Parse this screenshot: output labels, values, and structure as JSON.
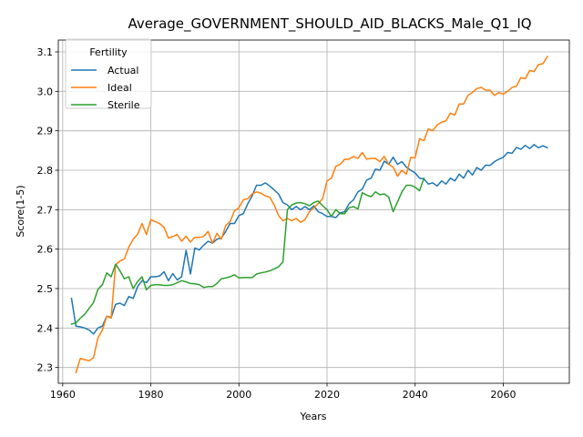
{
  "chart_data": {
    "type": "line",
    "title": "Average_GOVERNMENT_SHOULD_AID_BLACKS_Male_Q1_IQ",
    "xlabel": "Years",
    "ylabel": "Score(1-5)",
    "xlim": [
      1959,
      2075
    ],
    "ylim": [
      2.26,
      3.13
    ],
    "xticks": [
      1960,
      1980,
      2000,
      2020,
      2040,
      2060
    ],
    "yticks": [
      2.3,
      2.4,
      2.5,
      2.6,
      2.7,
      2.8,
      2.9,
      3.0,
      3.1
    ],
    "grid": true,
    "legend": {
      "title": "Fertility",
      "position": "top-left"
    },
    "series": [
      {
        "name": "Actual",
        "color": "#1f77b4",
        "points": [
          [
            1962,
            2.475
          ],
          [
            1963,
            2.405
          ],
          [
            1964,
            2.403
          ],
          [
            1965,
            2.4
          ],
          [
            1966,
            2.395
          ],
          [
            1967,
            2.385
          ],
          [
            1968,
            2.4
          ],
          [
            1969,
            2.405
          ],
          [
            1970,
            2.43
          ],
          [
            1971,
            2.427
          ],
          [
            1972,
            2.46
          ],
          [
            1973,
            2.463
          ],
          [
            1974,
            2.457
          ],
          [
            1975,
            2.48
          ],
          [
            1976,
            2.475
          ],
          [
            1977,
            2.505
          ],
          [
            1978,
            2.52
          ],
          [
            1979,
            2.515
          ],
          [
            1980,
            2.53
          ],
          [
            1981,
            2.53
          ],
          [
            1982,
            2.532
          ],
          [
            1983,
            2.543
          ],
          [
            1984,
            2.52
          ],
          [
            1985,
            2.538
          ],
          [
            1986,
            2.522
          ],
          [
            1987,
            2.53
          ],
          [
            1988,
            2.597
          ],
          [
            1989,
            2.537
          ],
          [
            1990,
            2.603
          ],
          [
            1991,
            2.598
          ],
          [
            1992,
            2.61
          ],
          [
            1993,
            2.62
          ],
          [
            1994,
            2.615
          ],
          [
            1995,
            2.625
          ],
          [
            1996,
            2.628
          ],
          [
            1997,
            2.645
          ],
          [
            1998,
            2.665
          ],
          [
            1999,
            2.665
          ],
          [
            2000,
            2.685
          ],
          [
            2001,
            2.69
          ],
          [
            2002,
            2.715
          ],
          [
            2003,
            2.735
          ],
          [
            2004,
            2.762
          ],
          [
            2005,
            2.762
          ],
          [
            2006,
            2.768
          ],
          [
            2007,
            2.76
          ],
          [
            2008,
            2.75
          ],
          [
            2009,
            2.74
          ],
          [
            2010,
            2.718
          ],
          [
            2011,
            2.712
          ],
          [
            2012,
            2.7
          ],
          [
            2013,
            2.708
          ],
          [
            2014,
            2.7
          ],
          [
            2015,
            2.708
          ],
          [
            2016,
            2.7
          ],
          [
            2017,
            2.71
          ],
          [
            2018,
            2.695
          ],
          [
            2019,
            2.69
          ],
          [
            2020,
            2.683
          ],
          [
            2021,
            2.683
          ],
          [
            2022,
            2.68
          ],
          [
            2023,
            2.692
          ],
          [
            2024,
            2.695
          ],
          [
            2025,
            2.715
          ],
          [
            2026,
            2.725
          ],
          [
            2027,
            2.745
          ],
          [
            2028,
            2.752
          ],
          [
            2029,
            2.775
          ],
          [
            2030,
            2.78
          ],
          [
            2031,
            2.803
          ],
          [
            2032,
            2.8
          ],
          [
            2033,
            2.823
          ],
          [
            2034,
            2.815
          ],
          [
            2035,
            2.833
          ],
          [
            2036,
            2.815
          ],
          [
            2037,
            2.822
          ],
          [
            2038,
            2.808
          ],
          [
            2039,
            2.8
          ],
          [
            2040,
            2.793
          ],
          [
            2041,
            2.78
          ],
          [
            2042,
            2.778
          ],
          [
            2043,
            2.765
          ],
          [
            2044,
            2.768
          ],
          [
            2045,
            2.76
          ],
          [
            2046,
            2.773
          ],
          [
            2047,
            2.765
          ],
          [
            2048,
            2.78
          ],
          [
            2049,
            2.773
          ],
          [
            2050,
            2.79
          ],
          [
            2051,
            2.78
          ],
          [
            2052,
            2.8
          ],
          [
            2053,
            2.788
          ],
          [
            2054,
            2.807
          ],
          [
            2055,
            2.8
          ],
          [
            2056,
            2.813
          ],
          [
            2057,
            2.812
          ],
          [
            2058,
            2.822
          ],
          [
            2059,
            2.828
          ],
          [
            2060,
            2.833
          ],
          [
            2061,
            2.845
          ],
          [
            2062,
            2.843
          ],
          [
            2063,
            2.858
          ],
          [
            2064,
            2.853
          ],
          [
            2065,
            2.863
          ],
          [
            2066,
            2.855
          ],
          [
            2067,
            2.865
          ],
          [
            2068,
            2.857
          ],
          [
            2069,
            2.862
          ],
          [
            2070,
            2.857
          ]
        ]
      },
      {
        "name": "Ideal",
        "color": "#ff7f0e",
        "points": [
          [
            1963,
            2.287
          ],
          [
            1964,
            2.323
          ],
          [
            1965,
            2.32
          ],
          [
            1966,
            2.317
          ],
          [
            1967,
            2.325
          ],
          [
            1968,
            2.375
          ],
          [
            1969,
            2.395
          ],
          [
            1970,
            2.43
          ],
          [
            1971,
            2.425
          ],
          [
            1972,
            2.56
          ],
          [
            1973,
            2.57
          ],
          [
            1974,
            2.575
          ],
          [
            1975,
            2.605
          ],
          [
            1976,
            2.625
          ],
          [
            1977,
            2.638
          ],
          [
            1978,
            2.665
          ],
          [
            1979,
            2.637
          ],
          [
            1980,
            2.675
          ],
          [
            1981,
            2.67
          ],
          [
            1982,
            2.665
          ],
          [
            1983,
            2.655
          ],
          [
            1984,
            2.628
          ],
          [
            1985,
            2.632
          ],
          [
            1986,
            2.637
          ],
          [
            1987,
            2.62
          ],
          [
            1988,
            2.633
          ],
          [
            1989,
            2.618
          ],
          [
            1990,
            2.63
          ],
          [
            1991,
            2.63
          ],
          [
            1992,
            2.632
          ],
          [
            1993,
            2.645
          ],
          [
            1994,
            2.615
          ],
          [
            1995,
            2.64
          ],
          [
            1996,
            2.625
          ],
          [
            1997,
            2.66
          ],
          [
            1998,
            2.67
          ],
          [
            1999,
            2.697
          ],
          [
            2000,
            2.705
          ],
          [
            2001,
            2.725
          ],
          [
            2002,
            2.728
          ],
          [
            2003,
            2.74
          ],
          [
            2004,
            2.745
          ],
          [
            2005,
            2.742
          ],
          [
            2006,
            2.735
          ],
          [
            2007,
            2.732
          ],
          [
            2008,
            2.712
          ],
          [
            2009,
            2.685
          ],
          [
            2010,
            2.672
          ],
          [
            2011,
            2.678
          ],
          [
            2012,
            2.672
          ],
          [
            2013,
            2.678
          ],
          [
            2014,
            2.668
          ],
          [
            2015,
            2.675
          ],
          [
            2016,
            2.695
          ],
          [
            2017,
            2.705
          ],
          [
            2018,
            2.715
          ],
          [
            2019,
            2.728
          ],
          [
            2020,
            2.773
          ],
          [
            2021,
            2.78
          ],
          [
            2022,
            2.81
          ],
          [
            2023,
            2.815
          ],
          [
            2024,
            2.828
          ],
          [
            2025,
            2.828
          ],
          [
            2026,
            2.835
          ],
          [
            2027,
            2.83
          ],
          [
            2028,
            2.845
          ],
          [
            2029,
            2.828
          ],
          [
            2030,
            2.83
          ],
          [
            2031,
            2.83
          ],
          [
            2032,
            2.822
          ],
          [
            2033,
            2.835
          ],
          [
            2034,
            2.815
          ],
          [
            2035,
            2.808
          ],
          [
            2036,
            2.785
          ],
          [
            2037,
            2.8
          ],
          [
            2038,
            2.79
          ],
          [
            2039,
            2.832
          ],
          [
            2040,
            2.832
          ],
          [
            2041,
            2.88
          ],
          [
            2042,
            2.875
          ],
          [
            2043,
            2.905
          ],
          [
            2044,
            2.9
          ],
          [
            2045,
            2.915
          ],
          [
            2046,
            2.922
          ],
          [
            2047,
            2.925
          ],
          [
            2048,
            2.945
          ],
          [
            2049,
            2.94
          ],
          [
            2050,
            2.968
          ],
          [
            2051,
            2.968
          ],
          [
            2052,
            2.99
          ],
          [
            2053,
            2.997
          ],
          [
            2054,
            3.007
          ],
          [
            2055,
            3.01
          ],
          [
            2056,
            3.003
          ],
          [
            2057,
            3.003
          ],
          [
            2058,
            2.99
          ],
          [
            2059,
            2.997
          ],
          [
            2060,
            2.993
          ],
          [
            2061,
            3.0
          ],
          [
            2062,
            3.01
          ],
          [
            2063,
            3.013
          ],
          [
            2064,
            3.035
          ],
          [
            2065,
            3.032
          ],
          [
            2066,
            3.053
          ],
          [
            2067,
            3.05
          ],
          [
            2068,
            3.068
          ],
          [
            2069,
            3.07
          ],
          [
            2070,
            3.088
          ]
        ]
      },
      {
        "name": "Sterile",
        "color": "#2ca02c",
        "points": [
          [
            1962,
            2.41
          ],
          [
            1963,
            2.413
          ],
          [
            1964,
            2.425
          ],
          [
            1965,
            2.435
          ],
          [
            1966,
            2.45
          ],
          [
            1967,
            2.465
          ],
          [
            1968,
            2.498
          ],
          [
            1969,
            2.51
          ],
          [
            1970,
            2.54
          ],
          [
            1971,
            2.53
          ],
          [
            1972,
            2.562
          ],
          [
            1973,
            2.545
          ],
          [
            1974,
            2.525
          ],
          [
            1975,
            2.53
          ],
          [
            1976,
            2.5
          ],
          [
            1977,
            2.518
          ],
          [
            1978,
            2.53
          ],
          [
            1979,
            2.497
          ],
          [
            1980,
            2.508
          ],
          [
            1981,
            2.51
          ],
          [
            1982,
            2.51
          ],
          [
            1983,
            2.508
          ],
          [
            1984,
            2.508
          ],
          [
            1985,
            2.51
          ],
          [
            1986,
            2.515
          ],
          [
            1987,
            2.52
          ],
          [
            1988,
            2.517
          ],
          [
            1989,
            2.513
          ],
          [
            1990,
            2.512
          ],
          [
            1991,
            2.51
          ],
          [
            1992,
            2.503
          ],
          [
            1993,
            2.505
          ],
          [
            1994,
            2.505
          ],
          [
            1995,
            2.513
          ],
          [
            1996,
            2.525
          ],
          [
            1997,
            2.527
          ],
          [
            1998,
            2.53
          ],
          [
            1999,
            2.535
          ],
          [
            2000,
            2.527
          ],
          [
            2001,
            2.528
          ],
          [
            2002,
            2.528
          ],
          [
            2003,
            2.528
          ],
          [
            2004,
            2.537
          ],
          [
            2005,
            2.54
          ],
          [
            2006,
            2.542
          ],
          [
            2007,
            2.545
          ],
          [
            2008,
            2.55
          ],
          [
            2009,
            2.555
          ],
          [
            2010,
            2.568
          ],
          [
            2011,
            2.7
          ],
          [
            2012,
            2.712
          ],
          [
            2013,
            2.717
          ],
          [
            2014,
            2.718
          ],
          [
            2015,
            2.715
          ],
          [
            2016,
            2.71
          ],
          [
            2017,
            2.718
          ],
          [
            2018,
            2.722
          ],
          [
            2019,
            2.71
          ],
          [
            2020,
            2.7
          ],
          [
            2021,
            2.683
          ],
          [
            2022,
            2.7
          ],
          [
            2023,
            2.69
          ],
          [
            2024,
            2.69
          ],
          [
            2025,
            2.705
          ],
          [
            2026,
            2.708
          ],
          [
            2027,
            2.702
          ],
          [
            2028,
            2.743
          ],
          [
            2029,
            2.737
          ],
          [
            2030,
            2.733
          ],
          [
            2031,
            2.745
          ],
          [
            2032,
            2.738
          ],
          [
            2033,
            2.74
          ],
          [
            2034,
            2.732
          ],
          [
            2035,
            2.695
          ],
          [
            2036,
            2.72
          ],
          [
            2037,
            2.745
          ],
          [
            2038,
            2.762
          ],
          [
            2039,
            2.762
          ],
          [
            2040,
            2.757
          ],
          [
            2041,
            2.748
          ],
          [
            2042,
            2.78
          ]
        ]
      }
    ]
  }
}
